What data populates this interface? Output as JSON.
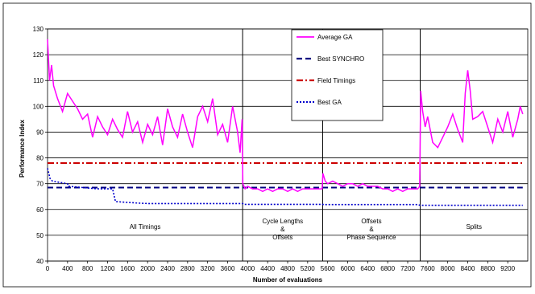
{
  "chart_data": {
    "type": "line",
    "xlabel": "Number of evaluations",
    "ylabel": "Performance Index",
    "xlim": [
      0,
      9600
    ],
    "ylim": [
      40,
      130
    ],
    "x_ticks": [
      0,
      400,
      800,
      1200,
      1600,
      2000,
      2400,
      2800,
      3200,
      3600,
      4000,
      4400,
      4800,
      5200,
      5600,
      6000,
      6400,
      6800,
      7200,
      7600,
      8000,
      8400,
      8800,
      9200
    ],
    "y_ticks": [
      40,
      50,
      60,
      70,
      80,
      90,
      100,
      110,
      120,
      130
    ],
    "grid": "horizontal",
    "legend_position": "top-center",
    "phase_boundaries": [
      3900,
      5500,
      7450
    ],
    "phases": [
      {
        "label_lines": [
          "All Timings"
        ],
        "x": 1950
      },
      {
        "label_lines": [
          "Cycle Lengths",
          "&",
          "Offsets"
        ],
        "x": 4700
      },
      {
        "label_lines": [
          "Offsets",
          "&",
          "Phase Sequence"
        ],
        "x": 6475
      },
      {
        "label_lines": [
          "Splits"
        ],
        "x": 8525
      }
    ],
    "series": [
      {
        "name": "Average GA",
        "color": "#ff00ff",
        "style": "solid",
        "x": [
          0,
          40,
          80,
          120,
          200,
          300,
          400,
          500,
          600,
          700,
          800,
          900,
          1000,
          1100,
          1200,
          1300,
          1400,
          1500,
          1600,
          1700,
          1800,
          1900,
          2000,
          2100,
          2200,
          2300,
          2400,
          2500,
          2600,
          2700,
          2800,
          2900,
          3000,
          3100,
          3200,
          3300,
          3400,
          3500,
          3600,
          3700,
          3800,
          3850,
          3890,
          3905,
          3950,
          4000,
          4100,
          4200,
          4300,
          4400,
          4500,
          4600,
          4700,
          4800,
          4900,
          5000,
          5100,
          5200,
          5300,
          5400,
          5490,
          5505,
          5550,
          5600,
          5700,
          5800,
          5900,
          6000,
          6100,
          6200,
          6300,
          6400,
          6500,
          6600,
          6700,
          6800,
          6900,
          7000,
          7100,
          7200,
          7300,
          7400,
          7440,
          7460,
          7500,
          7550,
          7600,
          7700,
          7800,
          7900,
          8000,
          8100,
          8200,
          8300,
          8350,
          8400,
          8450,
          8500,
          8600,
          8700,
          8800,
          8900,
          9000,
          9100,
          9200,
          9300,
          9400,
          9450,
          9500
        ],
        "y": [
          126,
          110,
          116,
          108,
          103,
          98,
          105,
          102,
          99,
          95,
          97,
          88,
          96,
          92,
          89,
          95,
          91,
          88,
          98,
          90,
          94,
          86,
          93,
          89,
          96,
          85,
          99,
          92,
          88,
          97,
          90,
          84,
          96,
          100,
          94,
          103,
          89,
          93,
          86,
          100,
          90,
          82,
          95,
          70,
          68,
          69,
          68,
          68,
          67,
          68,
          67,
          68,
          68,
          67,
          68,
          67,
          68,
          68,
          68,
          68,
          68,
          74,
          71,
          70,
          71,
          70,
          69,
          70,
          70,
          69,
          70,
          69,
          69,
          69,
          68,
          68,
          67,
          68,
          67,
          68,
          68,
          68,
          69,
          106,
          98,
          92,
          96,
          86,
          84,
          88,
          92,
          97,
          91,
          86,
          105,
          114,
          106,
          95,
          96,
          98,
          92,
          86,
          95,
          90,
          98,
          88,
          95,
          100,
          97
        ]
      },
      {
        "name": "Best SYNCHRO",
        "color": "#000080",
        "style": "dash",
        "x": [
          0,
          9500
        ],
        "y": [
          68.5,
          68.5
        ]
      },
      {
        "name": "Field Timings",
        "color": "#cc0000",
        "style": "dashdot",
        "x": [
          0,
          9500
        ],
        "y": [
          78,
          78
        ]
      },
      {
        "name": "Best GA",
        "color": "#0000cc",
        "style": "dot",
        "x": [
          0,
          50,
          100,
          400,
          420,
          1000,
          1300,
          1360,
          1400,
          1800,
          2000,
          3900,
          3920,
          5500,
          5520,
          7400,
          7450,
          9500
        ],
        "y": [
          76,
          72,
          71,
          70,
          69,
          68,
          68,
          63,
          63,
          62.5,
          62.3,
          62.3,
          62,
          62,
          61.9,
          61.9,
          61.6,
          61.6
        ]
      }
    ]
  }
}
